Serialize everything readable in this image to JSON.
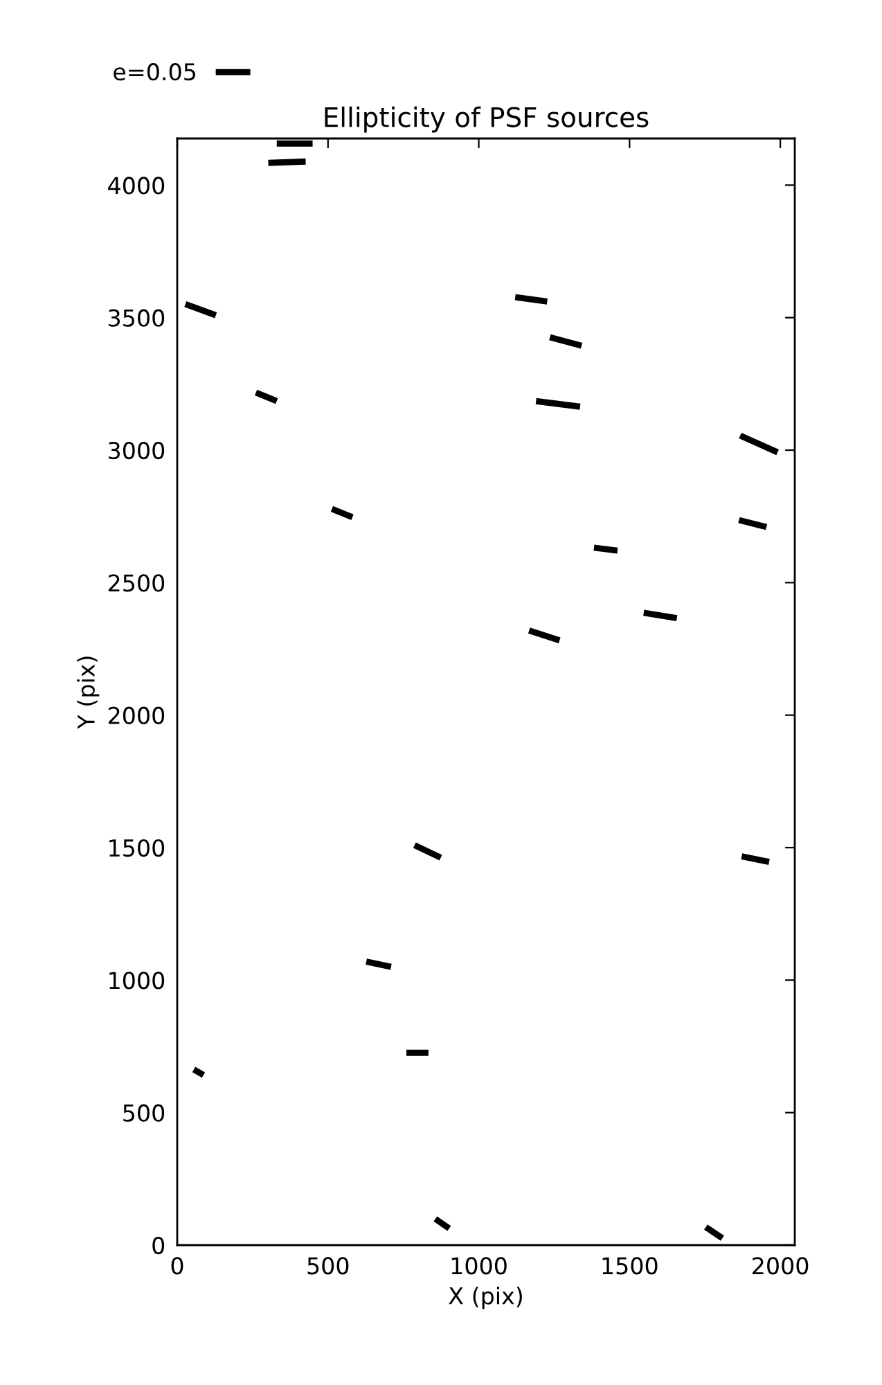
{
  "chart_data": {
    "type": "line",
    "title": "Ellipticity of PSF sources",
    "xlabel": "X (pix)",
    "ylabel": "Y (pix)",
    "series": [
      {
        "name": "e=0.05",
        "color": "#000000",
        "x": [
          330,
          449,
          null,
          302,
          426,
          null,
          27,
          128,
          null,
          1121,
          1227,
          null,
          1236,
          1341,
          null,
          261,
          330,
          null,
          1190,
          1336,
          null,
          1867,
          1991,
          null,
          513,
          581,
          null,
          1863,
          1954,
          null,
          1382,
          1460,
          null,
          1547,
          1657,
          null,
          1167,
          1268,
          null,
          787,
          874,
          null,
          1872,
          1963,
          null,
          627,
          709,
          null,
          760,
          833,
          null,
          55,
          87,
          null,
          856,
          902,
          null,
          1753,
          1808
        ],
        "values": [
          4157,
          4157,
          null,
          4084,
          4089,
          null,
          3551,
          3509,
          null,
          3577,
          3561,
          null,
          3426,
          3394,
          null,
          3217,
          3185,
          null,
          3185,
          3164,
          null,
          3055,
          2992,
          null,
          2778,
          2747,
          null,
          2736,
          2710,
          null,
          2632,
          2621,
          null,
          2386,
          2366,
          null,
          2319,
          2282,
          null,
          1509,
          1462,
          null,
          1467,
          1446,
          null,
          1070,
          1050,
          null,
          726,
          726,
          null,
          663,
          642,
          null,
          99,
          63,
          null,
          68,
          26
        ]
      }
    ],
    "xlim": [
      0,
      2048
    ],
    "ylim": [
      0,
      4176
    ],
    "xticks": [
      0,
      500,
      1000,
      1500,
      2000
    ],
    "yticks": [
      0,
      500,
      1000,
      1500,
      2000,
      2500,
      3000,
      3500,
      4000
    ],
    "grid": false,
    "legend": "top left",
    "marker": "none",
    "line_style": "solid"
  }
}
